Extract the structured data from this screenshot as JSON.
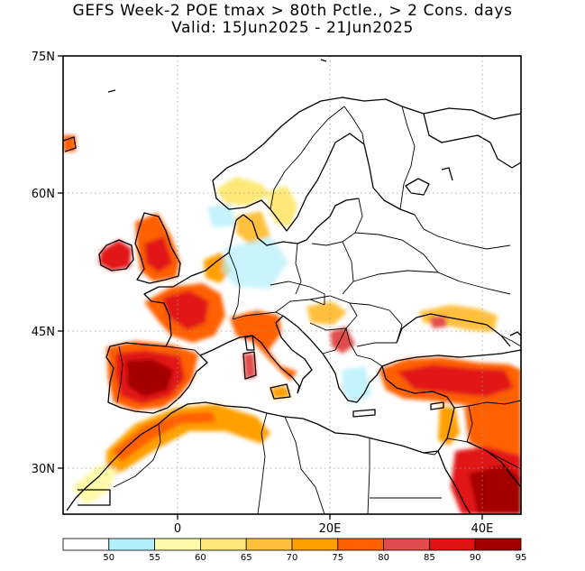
{
  "title_line1": "GEFS Week-2 POE tmax > 80th Pctle., > 2 Cons. days",
  "title_line2": "Valid: 15Jun2025 - 21Jun2025",
  "map": {
    "lon_range": [
      -15,
      45
    ],
    "lat_range": [
      25,
      75
    ],
    "lat_ticks": [
      {
        "value": 75,
        "label": "75N"
      },
      {
        "value": 60,
        "label": "60N"
      },
      {
        "value": 45,
        "label": "45N"
      },
      {
        "value": 30,
        "label": "30N"
      }
    ],
    "lon_ticks": [
      {
        "value": 0,
        "label": "0"
      },
      {
        "value": 20,
        "label": "20E"
      },
      {
        "value": 40,
        "label": "40E"
      }
    ],
    "gridlines": "dotted"
  },
  "colorbar": {
    "labels": [
      "50",
      "55",
      "60",
      "65",
      "70",
      "75",
      "80",
      "85",
      "90",
      "95"
    ],
    "colors": [
      "#ffffff",
      "#b4f0fa",
      "#fffaaa",
      "#ffe878",
      "#ffc03c",
      "#ffa000",
      "#ff6000",
      "#e14b4b",
      "#e11414",
      "#a50000"
    ]
  },
  "anomaly_regions": [
    {
      "name": "iberia",
      "level": 90
    },
    {
      "name": "france",
      "level": 85
    },
    {
      "name": "british-isles",
      "level": 85
    },
    {
      "name": "italy",
      "level": 85
    },
    {
      "name": "turkey",
      "level": 85
    },
    {
      "name": "arabia",
      "level": 95
    },
    {
      "name": "north-africa",
      "level": 75
    },
    {
      "name": "scandinavia",
      "level": 65
    },
    {
      "name": "balkans",
      "level": 75
    },
    {
      "name": "black-sea-north",
      "level": 70
    }
  ]
}
